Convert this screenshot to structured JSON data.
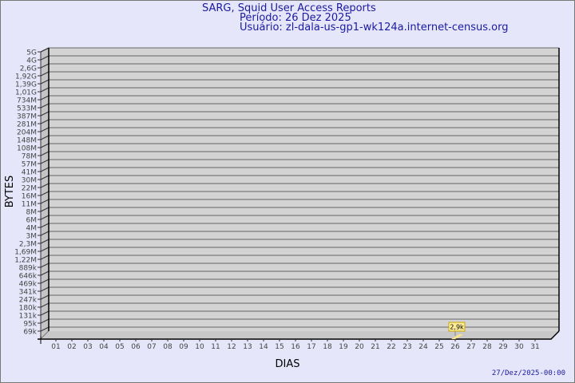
{
  "header": {
    "title": "SARG, Squid User Access Reports",
    "period": "Período: 26 Dez 2025",
    "user": "Usuário: zl-dala-us-gp1-wk124a.internet-census.org"
  },
  "footer": {
    "generated": "27/Dez/2025-00:00"
  },
  "colors": {
    "background": "#e6e6fa",
    "plot": "#d3d3d3",
    "title": "#1a1aa0",
    "bar": "#ffe680",
    "label_box": "#ffee99"
  },
  "chart_data": {
    "type": "bar",
    "xlabel": "DIAS",
    "ylabel": "BYTES",
    "y_scale": "log",
    "grid": true,
    "y_tick_labels": [
      "5G",
      "4G",
      "2,6G",
      "1,92G",
      "1,39G",
      "1,01G",
      "734M",
      "533M",
      "387M",
      "281M",
      "204M",
      "148M",
      "108M",
      "78M",
      "57M",
      "41M",
      "30M",
      "22M",
      "16M",
      "11M",
      "8M",
      "6M",
      "4M",
      "3M",
      "2,3M",
      "1,69M",
      "1,22M",
      "889k",
      "646k",
      "469k",
      "341k",
      "247k",
      "180k",
      "131k",
      "95k",
      "69k"
    ],
    "categories": [
      "01",
      "02",
      "03",
      "04",
      "05",
      "06",
      "07",
      "08",
      "09",
      "10",
      "11",
      "12",
      "13",
      "14",
      "15",
      "16",
      "17",
      "18",
      "19",
      "20",
      "21",
      "22",
      "23",
      "24",
      "25",
      "26",
      "27",
      "28",
      "29",
      "30",
      "31"
    ],
    "points": [
      {
        "x": "26",
        "value": 2900,
        "label": "2,9k"
      }
    ]
  }
}
